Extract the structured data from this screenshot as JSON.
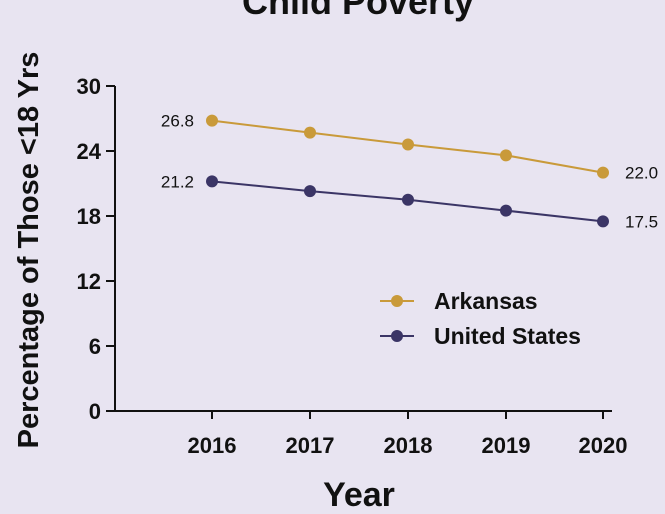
{
  "chart_data": {
    "type": "line",
    "title": "Child Poverty",
    "xlabel": "Year",
    "ylabel": "Percentage of Those <18 Yrs",
    "categories": [
      "2016",
      "2017",
      "2018",
      "2019",
      "2020"
    ],
    "yticks": [
      "0",
      "6",
      "12",
      "18",
      "24",
      "30"
    ],
    "ylim": [
      0,
      30
    ],
    "grid": false,
    "legend_position": "center-right",
    "series": [
      {
        "name": "Arkansas",
        "values": [
          26.8,
          25.7,
          24.6,
          23.6,
          22.0
        ],
        "color": "#c99a3a",
        "labels": {
          "first": "26.8",
          "last": "22.0"
        }
      },
      {
        "name": "United States",
        "values": [
          21.2,
          20.3,
          19.5,
          18.5,
          17.5
        ],
        "color": "#3b3566",
        "labels": {
          "first": "21.2",
          "last": "17.5"
        }
      }
    ]
  }
}
